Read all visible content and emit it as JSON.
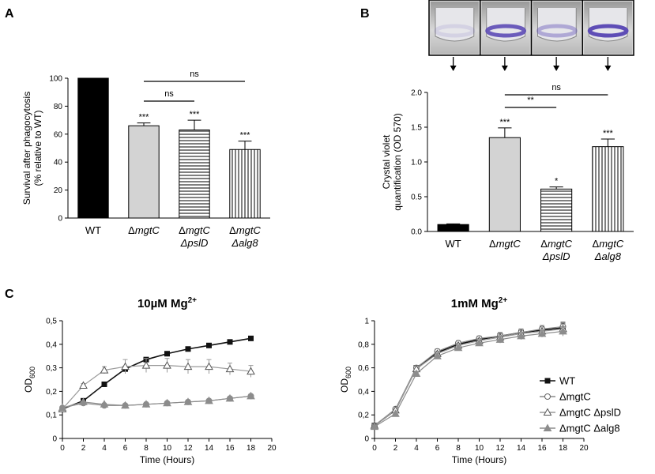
{
  "colors": {
    "wt": "#000000",
    "mgtC": "#d3d3d3",
    "pslD": "#ffffff",
    "alg8": "#ffffff",
    "line_wt": "#111111",
    "line_mgtC": "#8a8a8a",
    "line_pslD": "#9a9a9a",
    "line_alg8": "#8c8c8c",
    "biofilm_stain": "#5b49b5"
  },
  "panel_labels": {
    "a": "A",
    "b": "B",
    "c": "C"
  },
  "chart_data": [
    {
      "id": "A",
      "type": "bar",
      "title": "",
      "ylabel_line1": "Survival after phagocytosis",
      "ylabel_line2": "(% relative to WT)",
      "ylim": [
        0,
        100
      ],
      "yticks": [
        "0",
        "20",
        "40",
        "60",
        "80",
        "100"
      ],
      "categories": [
        {
          "delta": "",
          "line1": "WT",
          "line2": ""
        },
        {
          "delta": "Δ",
          "line1": "mgtC",
          "line2": ""
        },
        {
          "delta": "Δ",
          "line1": "mgtC",
          "line2": "ΔpslD"
        },
        {
          "delta": "Δ",
          "line1": "mgtC",
          "line2": "Δalg8"
        }
      ],
      "values": [
        100,
        66,
        63,
        49
      ],
      "errors": [
        0,
        2,
        7,
        6
      ],
      "fills": [
        "solid-black",
        "solid-gray",
        "horizontal-stripes",
        "vertical-stripes"
      ],
      "stars": [
        "",
        "***",
        "***",
        "***"
      ],
      "brackets": [
        {
          "from": 1,
          "to": 2,
          "label": "ns"
        },
        {
          "from": 1,
          "to": 3,
          "label": "ns"
        }
      ]
    },
    {
      "id": "B",
      "type": "bar",
      "title": "",
      "ylabel_line1": "Crystal violet",
      "ylabel_line2": "quantification (OD 570)",
      "ylim": [
        0,
        2.0
      ],
      "yticks": [
        "0.0",
        "0.5",
        "1.0",
        "1.5",
        "2.0"
      ],
      "categories": [
        {
          "delta": "",
          "line1": "WT",
          "line2": ""
        },
        {
          "delta": "Δ",
          "line1": "mgtC",
          "line2": ""
        },
        {
          "delta": "Δ",
          "line1": "mgtC",
          "line2": "ΔpslD"
        },
        {
          "delta": "Δ",
          "line1": "mgtC",
          "line2": "Δalg8"
        }
      ],
      "values": [
        0.1,
        1.35,
        0.61,
        1.22
      ],
      "errors": [
        0.01,
        0.14,
        0.03,
        0.11
      ],
      "fills": [
        "solid-black",
        "solid-gray",
        "horizontal-stripes",
        "vertical-stripes"
      ],
      "stars": [
        "",
        "***",
        "*",
        "***"
      ],
      "brackets": [
        {
          "from": 1,
          "to": 2,
          "label": "**"
        },
        {
          "from": 1,
          "to": 3,
          "label": "ns"
        }
      ],
      "tube_photos": [
        0.05,
        0.9,
        0.35,
        1.0
      ]
    },
    {
      "id": "C1",
      "type": "line",
      "title": "10µM Mg",
      "title_sup": "2+",
      "xlabel": "Time (Hours)",
      "ylabel": "OD",
      "ylabel_sub": "600",
      "xlim": [
        0,
        20
      ],
      "ylim": [
        0,
        0.5
      ],
      "xticks": [
        "0",
        "2",
        "4",
        "6",
        "8",
        "10",
        "12",
        "14",
        "16",
        "18",
        "20"
      ],
      "yticks": [
        "0",
        "0,1",
        "0,2",
        "0,3",
        "0,4",
        "0,5"
      ],
      "x": [
        0,
        2,
        4,
        6,
        8,
        10,
        12,
        14,
        16,
        18
      ],
      "series": [
        {
          "name": "WT",
          "marker": "square",
          "values": [
            0.125,
            0.16,
            0.23,
            0.295,
            0.335,
            0.36,
            0.38,
            0.395,
            0.41,
            0.425
          ],
          "errors": [
            0.005,
            0.005,
            0.005,
            0.005,
            0.005,
            0.005,
            0.005,
            0.005,
            0.005,
            0.008
          ]
        },
        {
          "name": "ΔmgtC",
          "marker": "circle",
          "values": [
            0.13,
            0.15,
            0.14,
            0.14,
            0.145,
            0.15,
            0.155,
            0.16,
            0.17,
            0.18
          ],
          "errors": [
            0.005,
            0.005,
            0.005,
            0.005,
            0.005,
            0.005,
            0.005,
            0.005,
            0.005,
            0.008
          ]
        },
        {
          "name": "ΔmgtC ΔpslD",
          "marker": "triangle-open",
          "values": [
            0.125,
            0.225,
            0.29,
            0.305,
            0.31,
            0.31,
            0.305,
            0.305,
            0.295,
            0.285
          ],
          "errors": [
            0.005,
            0.008,
            0.015,
            0.03,
            0.03,
            0.03,
            0.03,
            0.03,
            0.025,
            0.025
          ]
        },
        {
          "name": "ΔmgtC Δalg8",
          "marker": "triangle-filled",
          "values": [
            0.13,
            0.155,
            0.145,
            0.14,
            0.145,
            0.15,
            0.155,
            0.16,
            0.17,
            0.18
          ],
          "errors": [
            0.005,
            0.005,
            0.005,
            0.005,
            0.005,
            0.005,
            0.005,
            0.005,
            0.005,
            0.008
          ]
        }
      ]
    },
    {
      "id": "C2",
      "type": "line",
      "title": "1mM Mg",
      "title_sup": "2+",
      "xlabel": "Time (Hours)",
      "ylabel": "OD",
      "ylabel_sub": "600",
      "xlim": [
        0,
        20
      ],
      "ylim": [
        0,
        1
      ],
      "xticks": [
        "0",
        "2",
        "4",
        "6",
        "8",
        "10",
        "12",
        "14",
        "16",
        "18",
        "20"
      ],
      "yticks": [
        "0",
        "0,2",
        "0,4",
        "0,6",
        "0,8",
        "1"
      ],
      "x": [
        0,
        2,
        4,
        6,
        8,
        10,
        12,
        14,
        16,
        18
      ],
      "series": [
        {
          "name": "WT",
          "marker": "square",
          "values": [
            0.11,
            0.24,
            0.6,
            0.73,
            0.8,
            0.84,
            0.87,
            0.9,
            0.92,
            0.94
          ],
          "errors": [
            0.01,
            0.01,
            0.02,
            0.02,
            0.02,
            0.02,
            0.03,
            0.03,
            0.03,
            0.04
          ]
        },
        {
          "name": "ΔmgtC",
          "marker": "circle-open",
          "values": [
            0.11,
            0.25,
            0.6,
            0.74,
            0.81,
            0.85,
            0.87,
            0.9,
            0.93,
            0.95
          ],
          "errors": [
            0.01,
            0.01,
            0.02,
            0.02,
            0.02,
            0.02,
            0.03,
            0.03,
            0.03,
            0.04
          ]
        },
        {
          "name": "ΔmgtC ΔpslD",
          "marker": "triangle-open",
          "values": [
            0.11,
            0.24,
            0.59,
            0.72,
            0.79,
            0.83,
            0.86,
            0.89,
            0.91,
            0.93
          ],
          "errors": [
            0.01,
            0.01,
            0.02,
            0.02,
            0.02,
            0.02,
            0.03,
            0.03,
            0.03,
            0.04
          ]
        },
        {
          "name": "ΔmgtC Δalg8",
          "marker": "triangle-filled",
          "values": [
            0.1,
            0.21,
            0.55,
            0.7,
            0.77,
            0.81,
            0.84,
            0.87,
            0.89,
            0.91
          ],
          "errors": [
            0.01,
            0.01,
            0.02,
            0.02,
            0.02,
            0.02,
            0.03,
            0.03,
            0.03,
            0.04
          ]
        }
      ],
      "legend": [
        {
          "text": "WT",
          "marker": "square"
        },
        {
          "text": "ΔmgtC",
          "marker": "circle-open"
        },
        {
          "text": "ΔmgtC ΔpslD",
          "marker": "triangle-open"
        },
        {
          "text": "ΔmgtC Δalg8",
          "marker": "triangle-filled"
        }
      ]
    }
  ]
}
